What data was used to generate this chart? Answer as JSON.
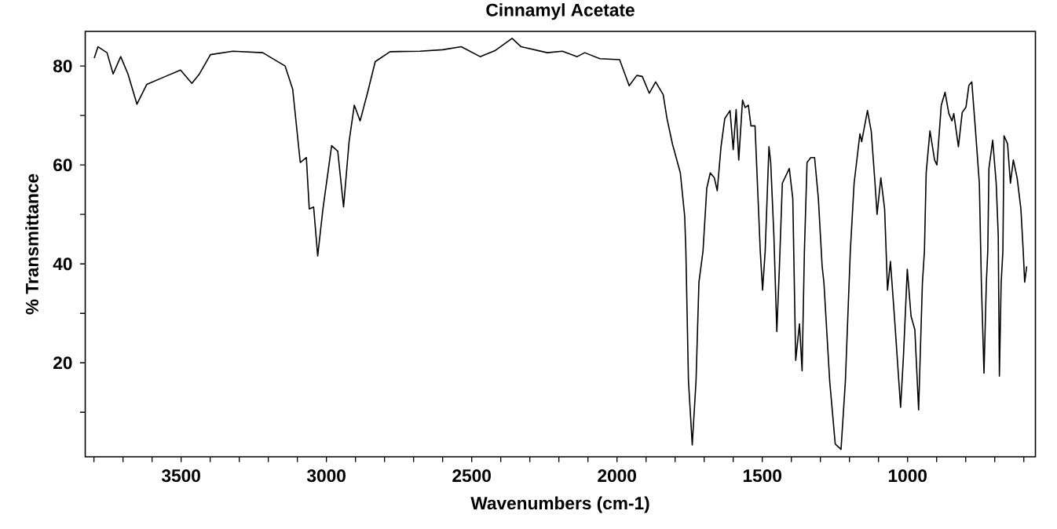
{
  "chart_data": {
    "type": "line",
    "title": "Cinnamyl Acetate",
    "xlabel": "Wavenumbers (cm-1)",
    "ylabel": "% Transmittance",
    "xlim": [
      3830,
      560
    ],
    "ylim": [
      1,
      87
    ],
    "xticks": [
      {
        "value": 3800,
        "label": null
      },
      {
        "value": 3700,
        "label": null
      },
      {
        "value": 3600,
        "label": null
      },
      3500,
      {
        "value": 3400,
        "label": null
      },
      {
        "value": 3300,
        "label": null
      },
      {
        "value": 3200,
        "label": null
      },
      {
        "value": 3100,
        "label": null
      },
      3000,
      {
        "value": 2900,
        "label": null
      },
      {
        "value": 2800,
        "label": null
      },
      {
        "value": 2700,
        "label": null
      },
      {
        "value": 2600,
        "label": null
      },
      2500,
      {
        "value": 2400,
        "label": null
      },
      {
        "value": 2300,
        "label": null
      },
      {
        "value": 2200,
        "label": null
      },
      {
        "value": 2100,
        "label": null
      },
      2000,
      {
        "value": 1900,
        "label": null
      },
      {
        "value": 1800,
        "label": null
      },
      {
        "value": 1700,
        "label": null
      },
      {
        "value": 1600,
        "label": null
      },
      1500,
      {
        "value": 1400,
        "label": null
      },
      {
        "value": 1300,
        "label": null
      },
      {
        "value": 1200,
        "label": null
      },
      {
        "value": 1100,
        "label": null
      },
      1000,
      {
        "value": 900,
        "label": null
      },
      {
        "value": 800,
        "label": null
      },
      {
        "value": 700,
        "label": null
      },
      {
        "value": 600,
        "label": null
      }
    ],
    "yticks": [
      {
        "value": 10,
        "label": null
      },
      20,
      {
        "value": 30,
        "label": null
      },
      40,
      {
        "value": 50,
        "label": null
      },
      60,
      {
        "value": 70,
        "label": null
      },
      80
    ],
    "marker": "none",
    "series": [
      {
        "color": "#000000",
        "x": [
          3799,
          3786,
          3755,
          3734,
          3708,
          3683,
          3652,
          3618,
          3554,
          3502,
          3463,
          3437,
          3399,
          3322,
          3219,
          3142,
          3116,
          3090,
          3069,
          3059,
          3044,
          3030,
          3012,
          2982,
          2961,
          2941,
          2922,
          2904,
          2884,
          2858,
          2832,
          2781,
          2678,
          2600,
          2536,
          2471,
          2420,
          2361,
          2330,
          2240,
          2188,
          2137,
          2111,
          2059,
          1991,
          1958,
          1932,
          1913,
          1889,
          1867,
          1841,
          1828,
          1809,
          1782,
          1767,
          1763,
          1754,
          1741,
          1728,
          1718,
          1704,
          1691,
          1679,
          1665,
          1655,
          1642,
          1629,
          1611,
          1600,
          1590,
          1581,
          1568,
          1559,
          1548,
          1539,
          1525,
          1507,
          1499,
          1490,
          1477,
          1471,
          1460,
          1450,
          1441,
          1431,
          1407,
          1395,
          1385,
          1372,
          1363,
          1355,
          1346,
          1333,
          1320,
          1307,
          1294,
          1288,
          1268,
          1249,
          1229,
          1214,
          1197,
          1184,
          1164,
          1158,
          1138,
          1125,
          1112,
          1105,
          1092,
          1079,
          1069,
          1059,
          1046,
          1024,
          1014,
          1001,
          988,
          975,
          962,
          949,
          942,
          936,
          923,
          907,
          899,
          884,
          871,
          858,
          847,
          841,
          825,
          812,
          799,
          789,
          779,
          766,
          753,
          746,
          737,
          729,
          724,
          720,
          707,
          695,
          688,
          684,
          678,
          672,
          668,
          656,
          646,
          636,
          623,
          610,
          602,
          597,
          590
        ],
        "values": [
          81.6,
          83.9,
          82.7,
          78.4,
          81.9,
          78.4,
          72.3,
          76.3,
          77.9,
          79.2,
          76.5,
          78.4,
          82.3,
          83.0,
          82.7,
          80.0,
          75.3,
          60.5,
          61.5,
          51.1,
          51.5,
          41.6,
          51.1,
          63.9,
          62.8,
          51.5,
          64.7,
          72.1,
          68.9,
          74.7,
          80.9,
          82.9,
          83.0,
          83.3,
          83.9,
          81.9,
          83.1,
          85.6,
          83.9,
          82.7,
          83.0,
          81.9,
          82.7,
          81.5,
          81.3,
          76.0,
          78.1,
          77.9,
          74.5,
          76.8,
          74.2,
          69.4,
          64.2,
          58.4,
          49.6,
          42.6,
          16.3,
          3.4,
          16.3,
          36.3,
          42.6,
          55.3,
          58.4,
          57.4,
          54.8,
          63.7,
          69.4,
          71.0,
          63.1,
          71.2,
          61.0,
          73.1,
          71.6,
          72.1,
          67.9,
          67.9,
          42.6,
          34.7,
          42.6,
          63.7,
          60.5,
          45.6,
          26.3,
          39.5,
          56.3,
          59.3,
          53.2,
          20.5,
          27.9,
          18.4,
          42.6,
          60.5,
          61.5,
          61.5,
          53.2,
          39.5,
          36.3,
          16.3,
          3.6,
          2.5,
          16.3,
          42.6,
          56.3,
          66.3,
          64.7,
          71.0,
          66.8,
          56.3,
          50.0,
          57.4,
          51.1,
          34.7,
          40.5,
          30.0,
          11.0,
          21.5,
          38.9,
          29.4,
          26.7,
          10.5,
          36.1,
          42.6,
          58.4,
          66.9,
          61.0,
          60.0,
          72.1,
          74.7,
          70.4,
          68.9,
          70.4,
          63.7,
          70.6,
          71.7,
          76.1,
          76.8,
          66.8,
          56.3,
          36.1,
          17.9,
          36.1,
          42.6,
          59.3,
          65.0,
          56.3,
          45.8,
          17.3,
          36.1,
          42.6,
          65.9,
          64.3,
          56.3,
          61.0,
          57.4,
          51.1,
          42.6,
          36.3,
          39.5
        ]
      }
    ]
  }
}
